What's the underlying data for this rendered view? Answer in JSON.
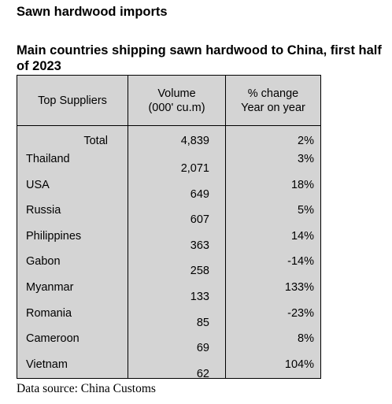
{
  "heading": "Sawn hardwood imports",
  "table_title": "Main countries shipping sawn hardwood to China, first half of 2023",
  "columns": {
    "supplier": "Top Suppliers",
    "volume_line1": "Volume",
    "volume_line2": "(000' cu.m)",
    "change_line1": "% change",
    "change_line2": "Year on year"
  },
  "total": {
    "label": "Total",
    "volume": "4,839",
    "change": "2%"
  },
  "rows": [
    {
      "country": "Thailand",
      "volume": "2,071",
      "change": "3%"
    },
    {
      "country": "USA",
      "volume": "649",
      "change": "18%"
    },
    {
      "country": "Russia",
      "volume": "607",
      "change": "5%"
    },
    {
      "country": "Philippines",
      "volume": "363",
      "change": "14%"
    },
    {
      "country": "Gabon",
      "volume": "258",
      "change": "-14%"
    },
    {
      "country": "Myanmar",
      "volume": "133",
      "change": "133%"
    },
    {
      "country": "Romania",
      "volume": "85",
      "change": "-23%"
    },
    {
      "country": "Cameroon",
      "volume": "69",
      "change": "8%"
    },
    {
      "country": "Vietnam",
      "volume": "62",
      "change": "104%"
    }
  ],
  "source": "Data source: China Customs"
}
